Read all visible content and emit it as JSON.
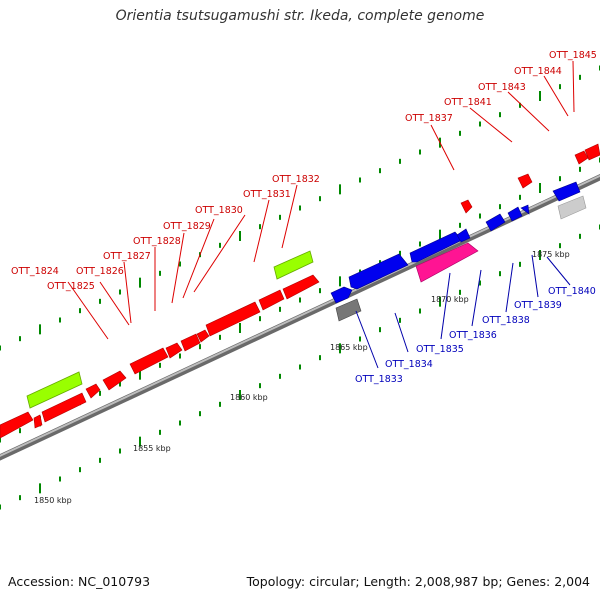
{
  "title": "Orientia tsutsugamushi str. Ikeda, complete genome",
  "footer": {
    "accession": "Accession: NC_010793",
    "summary": "Topology: circular; Length: 2,008,987 bp; Genes: 2,004"
  },
  "scale_labels": [
    "1850 kbp",
    "1855 kbp",
    "1860 kbp",
    "1865 kbp",
    "1870 kbp",
    "1875 kbp"
  ],
  "gene_labels": {
    "forward": [
      "OTT_1824",
      "OTT_1825",
      "OTT_1826",
      "OTT_1827",
      "OTT_1828",
      "OTT_1829",
      "OTT_1830",
      "OTT_1831",
      "OTT_1832",
      "OTT_1837",
      "OTT_1841",
      "OTT_1843",
      "OTT_1844",
      "OTT_1845"
    ],
    "reverse": [
      "OTT_1833",
      "OTT_1834",
      "OTT_1835",
      "OTT_1836",
      "OTT_1838",
      "OTT_1839",
      "OTT_1840"
    ]
  },
  "colors": {
    "forward_gene": "#ff0000",
    "reverse_gene": "#0000ee",
    "rna_gene": "#99ff00",
    "pink_gene": "#ff1493",
    "gray_gene": "#777777",
    "light_gray_gene": "#cccccc",
    "backbone": "#888888",
    "tick": "#007700",
    "forward_label": "#cc0000",
    "reverse_label": "#0000bb"
  }
}
